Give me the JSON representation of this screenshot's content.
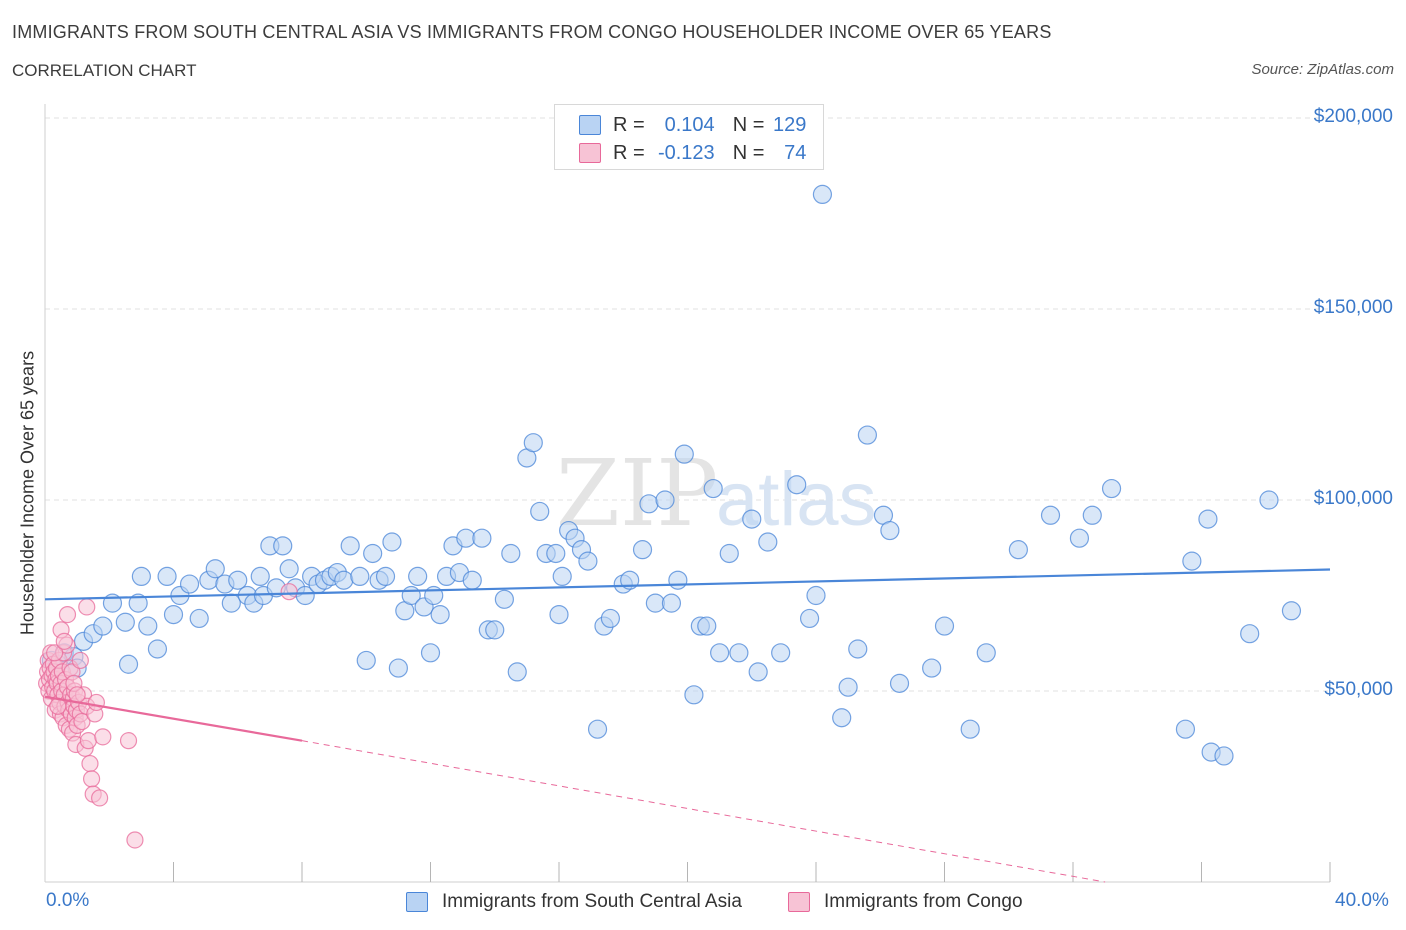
{
  "title": "IMMIGRANTS FROM SOUTH CENTRAL ASIA VS IMMIGRANTS FROM CONGO HOUSEHOLDER INCOME OVER 65 YEARS",
  "subtitle": "CORRELATION CHART",
  "source": "Source: ZipAtlas.com",
  "watermark": "ZIPatlas",
  "legend": {
    "r_label": "R =",
    "n_label": "N =",
    "series1": {
      "r": "0.104",
      "n": "129"
    },
    "series2": {
      "r": "-0.123",
      "n": "74"
    }
  },
  "colors": {
    "blue": "#4a86d8",
    "blue_fill": "#b9d3f3",
    "pink": "#e8699a",
    "pink_fill": "#f7c3d5",
    "tick_text": "#3a78c9",
    "grid": "#e2e2e2"
  },
  "chart_data": {
    "type": "scatter",
    "title": "IMMIGRANTS FROM SOUTH CENTRAL ASIA VS IMMIGRANTS FROM CONGO HOUSEHOLDER INCOME OVER 65 YEARS",
    "subtitle": "CORRELATION CHART",
    "xlabel": "",
    "ylabel": "Householder Income Over 65 years",
    "xlim": [
      0,
      40
    ],
    "ylim": [
      0,
      200000
    ],
    "x_tick_labels": [
      "0.0%",
      "40.0%"
    ],
    "y_ticks": [
      50000,
      100000,
      150000,
      200000
    ],
    "y_tick_labels": [
      "$50,000",
      "$100,000",
      "$150,000",
      "$200,000"
    ],
    "grid": true,
    "legend_placement": "top-center",
    "series": [
      {
        "name": "Immigrants from South Central Asia",
        "color": "#4a86d8",
        "r": 0.104,
        "n": 129,
        "trend": {
          "x": [
            0,
            40
          ],
          "y": [
            74000,
            81800
          ],
          "dashed_from": null
        },
        "points": [
          [
            0.2,
            58000
          ],
          [
            0.4,
            57000
          ],
          [
            0.6,
            60000
          ],
          [
            0.9,
            59000
          ],
          [
            1.2,
            63000
          ],
          [
            1.5,
            65000
          ],
          [
            1.8,
            67000
          ],
          [
            2.1,
            73000
          ],
          [
            2.5,
            68000
          ],
          [
            2.6,
            57000
          ],
          [
            2.9,
            73000
          ],
          [
            3.2,
            67000
          ],
          [
            3.5,
            61000
          ],
          [
            3.8,
            80000
          ],
          [
            4.0,
            70000
          ],
          [
            4.2,
            75000
          ],
          [
            4.5,
            78000
          ],
          [
            4.8,
            69000
          ],
          [
            5.1,
            79000
          ],
          [
            5.3,
            82000
          ],
          [
            5.6,
            78000
          ],
          [
            5.8,
            73000
          ],
          [
            6.0,
            79000
          ],
          [
            6.3,
            75000
          ],
          [
            6.5,
            73000
          ],
          [
            6.8,
            75000
          ],
          [
            7.0,
            88000
          ],
          [
            7.2,
            77000
          ],
          [
            7.4,
            88000
          ],
          [
            7.6,
            82000
          ],
          [
            7.8,
            77000
          ],
          [
            8.1,
            75000
          ],
          [
            8.3,
            80000
          ],
          [
            8.5,
            78000
          ],
          [
            8.7,
            79000
          ],
          [
            8.9,
            80000
          ],
          [
            9.1,
            81000
          ],
          [
            9.3,
            79000
          ],
          [
            9.5,
            88000
          ],
          [
            9.8,
            80000
          ],
          [
            10.0,
            58000
          ],
          [
            10.2,
            86000
          ],
          [
            10.4,
            79000
          ],
          [
            10.6,
            80000
          ],
          [
            10.8,
            89000
          ],
          [
            11.0,
            56000
          ],
          [
            11.2,
            71000
          ],
          [
            11.4,
            75000
          ],
          [
            11.6,
            80000
          ],
          [
            11.8,
            72000
          ],
          [
            12.1,
            75000
          ],
          [
            12.3,
            70000
          ],
          [
            12.5,
            80000
          ],
          [
            12.7,
            88000
          ],
          [
            12.9,
            81000
          ],
          [
            13.1,
            90000
          ],
          [
            13.3,
            79000
          ],
          [
            13.6,
            90000
          ],
          [
            13.8,
            66000
          ],
          [
            14.0,
            66000
          ],
          [
            14.3,
            74000
          ],
          [
            14.5,
            86000
          ],
          [
            14.7,
            55000
          ],
          [
            15.0,
            111000
          ],
          [
            15.2,
            115000
          ],
          [
            15.4,
            97000
          ],
          [
            15.6,
            86000
          ],
          [
            15.9,
            86000
          ],
          [
            16.1,
            80000
          ],
          [
            16.3,
            92000
          ],
          [
            16.5,
            90000
          ],
          [
            16.7,
            87000
          ],
          [
            16.9,
            84000
          ],
          [
            17.2,
            40000
          ],
          [
            17.4,
            67000
          ],
          [
            17.6,
            69000
          ],
          [
            18.0,
            78000
          ],
          [
            18.2,
            79000
          ],
          [
            18.6,
            87000
          ],
          [
            18.8,
            99000
          ],
          [
            19.0,
            73000
          ],
          [
            19.3,
            100000
          ],
          [
            19.5,
            73000
          ],
          [
            19.7,
            79000
          ],
          [
            19.9,
            112000
          ],
          [
            20.2,
            49000
          ],
          [
            20.4,
            67000
          ],
          [
            20.6,
            67000
          ],
          [
            20.8,
            103000
          ],
          [
            21.0,
            60000
          ],
          [
            21.3,
            86000
          ],
          [
            21.6,
            60000
          ],
          [
            22.0,
            95000
          ],
          [
            22.5,
            89000
          ],
          [
            22.9,
            60000
          ],
          [
            23.4,
            104000
          ],
          [
            23.8,
            69000
          ],
          [
            24.0,
            75000
          ],
          [
            24.2,
            180000
          ],
          [
            24.8,
            43000
          ],
          [
            25.0,
            51000
          ],
          [
            25.3,
            61000
          ],
          [
            25.6,
            117000
          ],
          [
            26.1,
            96000
          ],
          [
            26.3,
            92000
          ],
          [
            26.6,
            52000
          ],
          [
            27.6,
            56000
          ],
          [
            28.0,
            67000
          ],
          [
            28.8,
            40000
          ],
          [
            29.3,
            60000
          ],
          [
            30.3,
            87000
          ],
          [
            31.3,
            96000
          ],
          [
            32.2,
            90000
          ],
          [
            32.6,
            96000
          ],
          [
            33.2,
            103000
          ],
          [
            35.5,
            40000
          ],
          [
            35.7,
            84000
          ],
          [
            36.2,
            95000
          ],
          [
            36.3,
            34000
          ],
          [
            36.7,
            33000
          ],
          [
            37.5,
            65000
          ],
          [
            38.1,
            100000
          ],
          [
            38.8,
            71000
          ],
          [
            1.0,
            56000
          ],
          [
            3.0,
            80000
          ],
          [
            6.7,
            80000
          ],
          [
            12.0,
            60000
          ],
          [
            16.0,
            70000
          ],
          [
            22.2,
            55000
          ]
        ]
      },
      {
        "name": "Immigrants from Congo",
        "color": "#e8699a",
        "r": -0.123,
        "n": 74,
        "trend": {
          "x": [
            0,
            8
          ],
          "y": [
            48500,
            37000
          ],
          "dashed_to": [
            33,
            0
          ]
        },
        "points": [
          [
            0.05,
            52000
          ],
          [
            0.08,
            55000
          ],
          [
            0.1,
            58000
          ],
          [
            0.12,
            50000
          ],
          [
            0.14,
            53000
          ],
          [
            0.16,
            56000
          ],
          [
            0.18,
            60000
          ],
          [
            0.2,
            48000
          ],
          [
            0.22,
            54000
          ],
          [
            0.24,
            51000
          ],
          [
            0.26,
            57000
          ],
          [
            0.28,
            55000
          ],
          [
            0.3,
            50000
          ],
          [
            0.32,
            45000
          ],
          [
            0.34,
            53000
          ],
          [
            0.36,
            56000
          ],
          [
            0.38,
            52000
          ],
          [
            0.4,
            49000
          ],
          [
            0.42,
            54000
          ],
          [
            0.44,
            58000
          ],
          [
            0.46,
            47000
          ],
          [
            0.48,
            44000
          ],
          [
            0.5,
            52000
          ],
          [
            0.52,
            50000
          ],
          [
            0.54,
            55000
          ],
          [
            0.56,
            43000
          ],
          [
            0.58,
            60000
          ],
          [
            0.6,
            49000
          ],
          [
            0.62,
            46000
          ],
          [
            0.64,
            53000
          ],
          [
            0.66,
            41000
          ],
          [
            0.68,
            62000
          ],
          [
            0.7,
            51000
          ],
          [
            0.72,
            47000
          ],
          [
            0.74,
            45000
          ],
          [
            0.76,
            40000
          ],
          [
            0.78,
            56000
          ],
          [
            0.8,
            49000
          ],
          [
            0.82,
            44000
          ],
          [
            0.84,
            55000
          ],
          [
            0.86,
            39000
          ],
          [
            0.88,
            48000
          ],
          [
            0.9,
            46000
          ],
          [
            0.92,
            50000
          ],
          [
            0.94,
            43000
          ],
          [
            0.96,
            36000
          ],
          [
            0.98,
            45000
          ],
          [
            1.0,
            41000
          ],
          [
            1.05,
            47000
          ],
          [
            1.1,
            44000
          ],
          [
            1.15,
            42000
          ],
          [
            1.2,
            49000
          ],
          [
            1.25,
            35000
          ],
          [
            1.3,
            46000
          ],
          [
            1.35,
            37000
          ],
          [
            1.4,
            31000
          ],
          [
            1.45,
            27000
          ],
          [
            1.5,
            23000
          ],
          [
            1.55,
            44000
          ],
          [
            1.6,
            47000
          ],
          [
            1.7,
            22000
          ],
          [
            1.8,
            38000
          ],
          [
            0.7,
            70000
          ],
          [
            1.3,
            72000
          ],
          [
            0.5,
            66000
          ],
          [
            2.6,
            37000
          ],
          [
            2.8,
            11000
          ],
          [
            7.6,
            76000
          ],
          [
            0.3,
            60000
          ],
          [
            0.9,
            52000
          ],
          [
            1.1,
            58000
          ],
          [
            0.6,
            63000
          ],
          [
            0.4,
            46000
          ],
          [
            1.0,
            49000
          ]
        ]
      }
    ]
  }
}
